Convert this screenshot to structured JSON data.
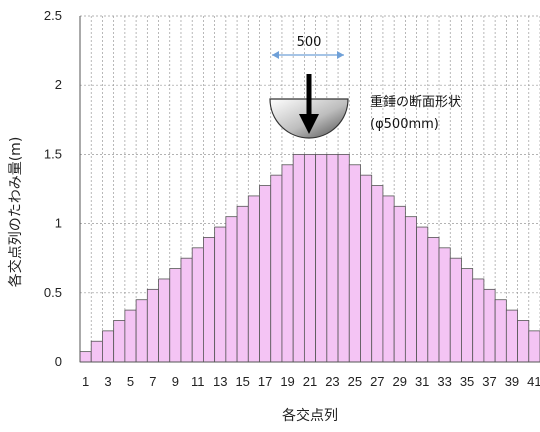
{
  "chart_data": {
    "type": "bar",
    "categories": [
      "1",
      "2",
      "3",
      "4",
      "5",
      "6",
      "7",
      "8",
      "9",
      "10",
      "11",
      "12",
      "13",
      "14",
      "15",
      "16",
      "17",
      "18",
      "19",
      "20",
      "21",
      "22",
      "23",
      "24",
      "25",
      "26",
      "27",
      "28",
      "29",
      "30",
      "31",
      "32",
      "33",
      "34",
      "35",
      "36",
      "37",
      "38",
      "39",
      "40",
      "41"
    ],
    "tick_labels": [
      "1",
      "3",
      "5",
      "7",
      "9",
      "11",
      "13",
      "15",
      "17",
      "19",
      "21",
      "23",
      "25",
      "27",
      "29",
      "31",
      "33",
      "35",
      "37",
      "39",
      "41"
    ],
    "values": [
      0.075,
      0.15,
      0.225,
      0.3,
      0.375,
      0.45,
      0.525,
      0.6,
      0.675,
      0.75,
      0.825,
      0.9,
      0.975,
      1.05,
      1.125,
      1.2,
      1.275,
      1.35,
      1.425,
      1.5,
      1.5,
      1.5,
      1.5,
      1.5,
      1.425,
      1.35,
      1.275,
      1.2,
      1.125,
      1.05,
      0.975,
      0.9,
      0.825,
      0.75,
      0.675,
      0.6,
      0.525,
      0.45,
      0.375,
      0.3,
      0.225
    ],
    "xlabel": "各交点列",
    "ylabel": "各交点列のたわみ量(m)",
    "ylim": [
      0,
      2.5
    ],
    "yticks": [
      "0",
      "0.5",
      "1",
      "1.5",
      "2",
      "2.5"
    ],
    "grid": true,
    "bar_color": "#f4c4f4",
    "annotations": {
      "width_label": "500",
      "weight_title": "重錘の断面形状",
      "weight_size": "(φ500mm)"
    }
  }
}
